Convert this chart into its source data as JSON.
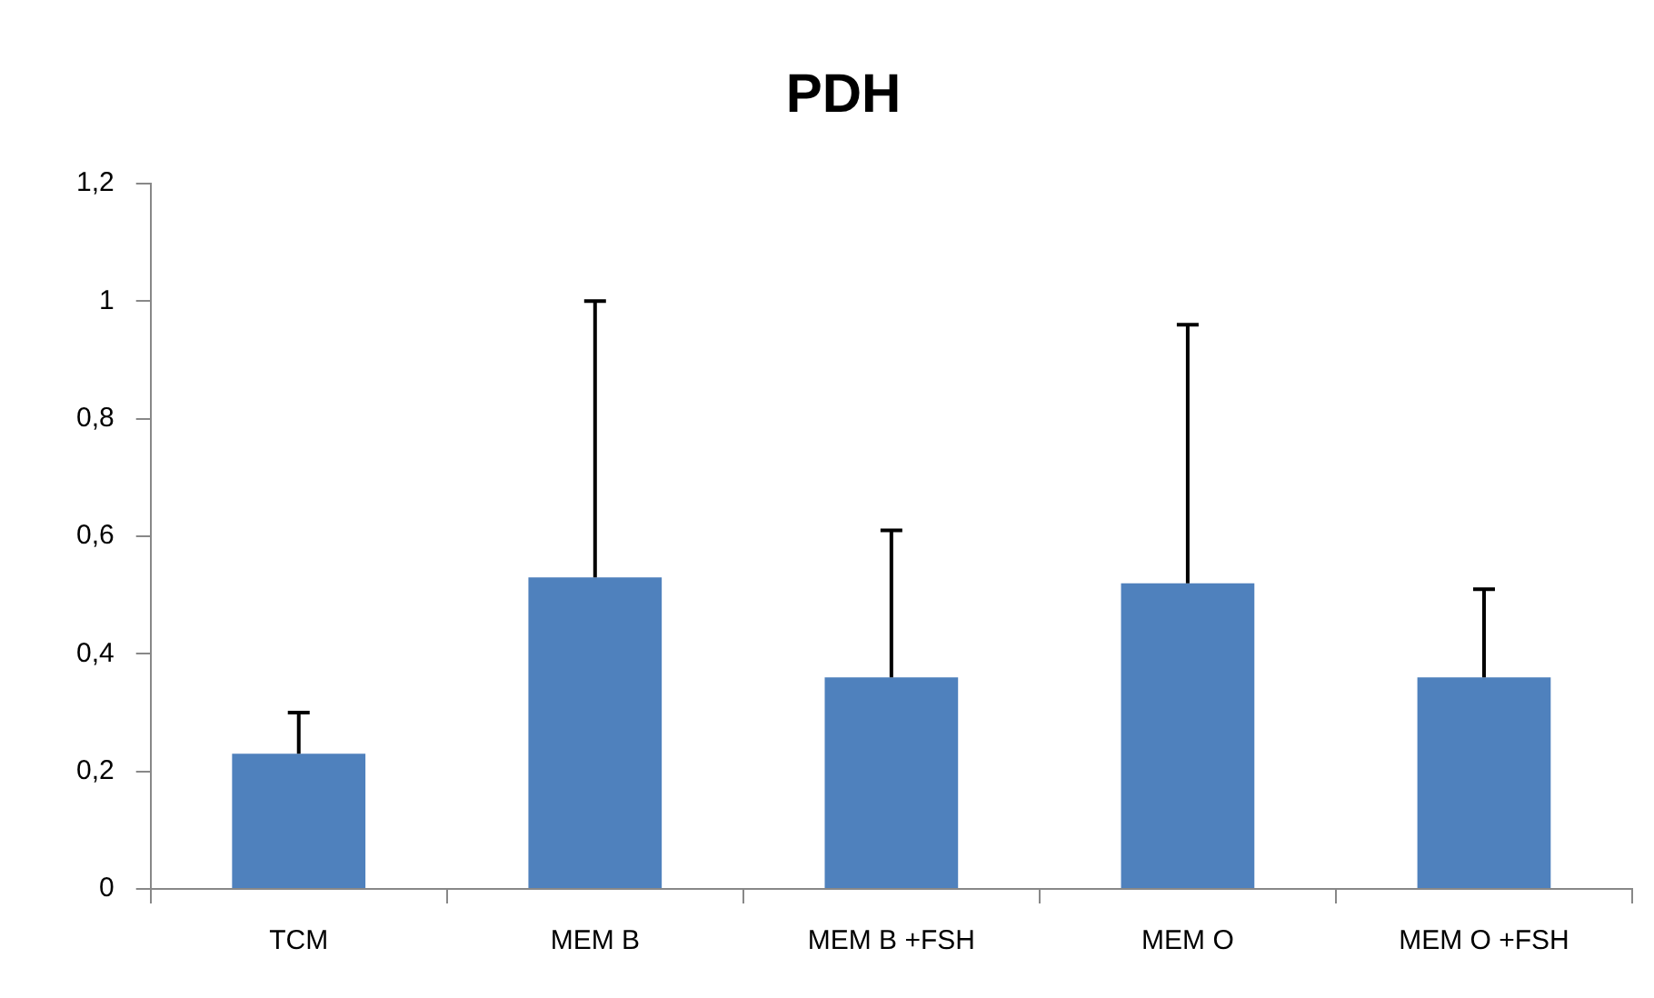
{
  "chart_data": {
    "type": "bar",
    "title": "PDH",
    "categories": [
      "TCM",
      "MEM B",
      "MEM B +FSH",
      "MEM O",
      "MEM O +FSH"
    ],
    "values": [
      0.23,
      0.53,
      0.36,
      0.52,
      0.36
    ],
    "errors": [
      [
        0.23,
        0.3
      ],
      [
        0.53,
        1.0
      ],
      [
        0.36,
        0.61
      ],
      [
        0.52,
        0.96
      ],
      [
        0.36,
        0.51
      ]
    ],
    "color": "#4f81bd",
    "ylim": [
      0,
      1.2
    ],
    "yticks": [
      0,
      {
        "value": 0.2,
        "label": "0,2"
      },
      {
        "value": 0.4,
        "label": "0,4"
      },
      {
        "value": 0.6,
        "label": "0,6"
      },
      {
        "value": 0.8,
        "label": "0,8"
      },
      1,
      {
        "value": 1.2,
        "label": "1,2"
      }
    ],
    "grid": false,
    "legend": false
  }
}
